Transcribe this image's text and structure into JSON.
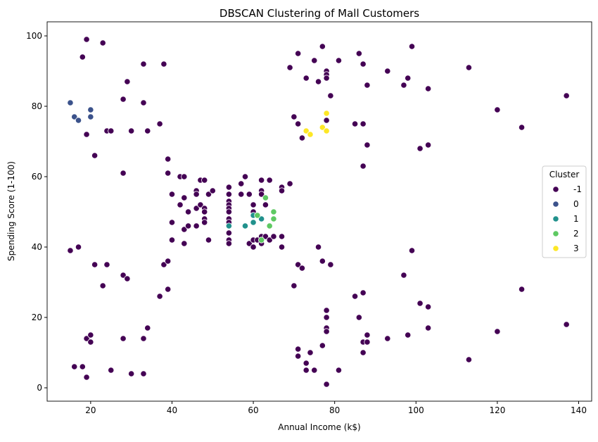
{
  "chart_data": {
    "type": "scatter",
    "title": "DBSCAN Clustering of Mall Customers",
    "xlabel": "Annual Income (k$)",
    "ylabel": "Spending Score (1-100)",
    "xlim": [
      9.3,
      143.2
    ],
    "ylim": [
      -3.8,
      104
    ],
    "xticks": [
      20,
      40,
      60,
      80,
      100,
      120,
      140
    ],
    "yticks": [
      0,
      20,
      40,
      60,
      80,
      100
    ],
    "grid": false,
    "legend": {
      "title": "Cluster",
      "placement": "center-right",
      "entries": [
        "-1",
        "0",
        "1",
        "2",
        "3"
      ]
    },
    "colors": {
      "-1": "#440154",
      "0": "#3b528b",
      "1": "#21918c",
      "2": "#5ec962",
      "3": "#fde725"
    },
    "series": [
      {
        "name": "-1",
        "points": [
          [
            19,
            99
          ],
          [
            23,
            98
          ],
          [
            18,
            94
          ],
          [
            33,
            92
          ],
          [
            38,
            92
          ],
          [
            29,
            87
          ],
          [
            28,
            82
          ],
          [
            33,
            81
          ],
          [
            37,
            75
          ],
          [
            19,
            72
          ],
          [
            24,
            73
          ],
          [
            25,
            73
          ],
          [
            30,
            73
          ],
          [
            34,
            73
          ],
          [
            21,
            66
          ],
          [
            28,
            61
          ],
          [
            39,
            65
          ],
          [
            39,
            61
          ],
          [
            42,
            60
          ],
          [
            43,
            60
          ],
          [
            40,
            55
          ],
          [
            40,
            47
          ],
          [
            40,
            42
          ],
          [
            42,
            52
          ],
          [
            43,
            54
          ],
          [
            43,
            45
          ],
          [
            43,
            41
          ],
          [
            44,
            50
          ],
          [
            44,
            46
          ],
          [
            46,
            56
          ],
          [
            46,
            55
          ],
          [
            46,
            51
          ],
          [
            46,
            46
          ],
          [
            47,
            59
          ],
          [
            47,
            52
          ],
          [
            48,
            59
          ],
          [
            48,
            51
          ],
          [
            48,
            50
          ],
          [
            48,
            48
          ],
          [
            48,
            47
          ],
          [
            49,
            55
          ],
          [
            49,
            42
          ],
          [
            50,
            56
          ],
          [
            54,
            57
          ],
          [
            54,
            55
          ],
          [
            54,
            53
          ],
          [
            54,
            52
          ],
          [
            54,
            51
          ],
          [
            54,
            50
          ],
          [
            54,
            48
          ],
          [
            54,
            47
          ],
          [
            54,
            44
          ],
          [
            54,
            42
          ],
          [
            54,
            41
          ],
          [
            57,
            58
          ],
          [
            57,
            55
          ],
          [
            58,
            60
          ],
          [
            59,
            55
          ],
          [
            59,
            41
          ],
          [
            60,
            52
          ],
          [
            60,
            50
          ],
          [
            60,
            42
          ],
          [
            60,
            40
          ],
          [
            61,
            42
          ],
          [
            62,
            59
          ],
          [
            62,
            56
          ],
          [
            62,
            55
          ],
          [
            62,
            43
          ],
          [
            62,
            41
          ],
          [
            63,
            52
          ],
          [
            63,
            43
          ],
          [
            64,
            59
          ],
          [
            64,
            42
          ],
          [
            65,
            43
          ],
          [
            67,
            57
          ],
          [
            67,
            56
          ],
          [
            67,
            43
          ],
          [
            67,
            40
          ],
          [
            69,
            58
          ],
          [
            15,
            39
          ],
          [
            17,
            40
          ],
          [
            21,
            35
          ],
          [
            24,
            35
          ],
          [
            23,
            29
          ],
          [
            28,
            32
          ],
          [
            29,
            31
          ],
          [
            37,
            26
          ],
          [
            38,
            35
          ],
          [
            39,
            36
          ],
          [
            39,
            28
          ],
          [
            34,
            17
          ],
          [
            33,
            14
          ],
          [
            28,
            14
          ],
          [
            19,
            14
          ],
          [
            20,
            15
          ],
          [
            20,
            13
          ],
          [
            16,
            6
          ],
          [
            18,
            6
          ],
          [
            25,
            5
          ],
          [
            19,
            3
          ],
          [
            30,
            4
          ],
          [
            33,
            4
          ],
          [
            69,
            91
          ],
          [
            71,
            95
          ],
          [
            77,
            97
          ],
          [
            75,
            93
          ],
          [
            76,
            87
          ],
          [
            73,
            88
          ],
          [
            78,
            90
          ],
          [
            78,
            89
          ],
          [
            78,
            88
          ],
          [
            81,
            93
          ],
          [
            78,
            76
          ],
          [
            79,
            83
          ],
          [
            70,
            77
          ],
          [
            71,
            75
          ],
          [
            72,
            71
          ],
          [
            86,
            95
          ],
          [
            87,
            92
          ],
          [
            88,
            86
          ],
          [
            85,
            75
          ],
          [
            87,
            75
          ],
          [
            88,
            69
          ],
          [
            87,
            63
          ],
          [
            93,
            90
          ],
          [
            97,
            86
          ],
          [
            98,
            88
          ],
          [
            99,
            97
          ],
          [
            101,
            68
          ],
          [
            103,
            85
          ],
          [
            103,
            69
          ],
          [
            113,
            91
          ],
          [
            120,
            79
          ],
          [
            126,
            74
          ],
          [
            137,
            83
          ],
          [
            70,
            29
          ],
          [
            71,
            35
          ],
          [
            72,
            34
          ],
          [
            76,
            40
          ],
          [
            77,
            36
          ],
          [
            79,
            35
          ],
          [
            78,
            22
          ],
          [
            78,
            20
          ],
          [
            78,
            17
          ],
          [
            78,
            16
          ],
          [
            77,
            12
          ],
          [
            71,
            11
          ],
          [
            71,
            9
          ],
          [
            73,
            7
          ],
          [
            73,
            5
          ],
          [
            75,
            5
          ],
          [
            74,
            10
          ],
          [
            78,
            1
          ],
          [
            81,
            5
          ],
          [
            85,
            26
          ],
          [
            86,
            20
          ],
          [
            87,
            27
          ],
          [
            87,
            13
          ],
          [
            88,
            13
          ],
          [
            88,
            15
          ],
          [
            87,
            10
          ],
          [
            93,
            14
          ],
          [
            97,
            32
          ],
          [
            98,
            15
          ],
          [
            99,
            39
          ],
          [
            101,
            24
          ],
          [
            103,
            23
          ],
          [
            103,
            17
          ],
          [
            113,
            8
          ],
          [
            120,
            16
          ],
          [
            126,
            28
          ],
          [
            137,
            18
          ]
        ]
      },
      {
        "name": "0",
        "points": [
          [
            15,
            81
          ],
          [
            16,
            77
          ],
          [
            17,
            76
          ],
          [
            20,
            79
          ],
          [
            20,
            77
          ]
        ]
      },
      {
        "name": "1",
        "points": [
          [
            54,
            46
          ],
          [
            58,
            46
          ],
          [
            60,
            47
          ],
          [
            60,
            49
          ],
          [
            62,
            48
          ]
        ]
      },
      {
        "name": "2",
        "points": [
          [
            61,
            49
          ],
          [
            62,
            42
          ],
          [
            63,
            54
          ],
          [
            64,
            46
          ],
          [
            65,
            50
          ],
          [
            65,
            48
          ]
        ]
      },
      {
        "name": "3",
        "points": [
          [
            73,
            73
          ],
          [
            74,
            72
          ],
          [
            77,
            74
          ],
          [
            78,
            78
          ],
          [
            78,
            73
          ]
        ]
      }
    ]
  }
}
